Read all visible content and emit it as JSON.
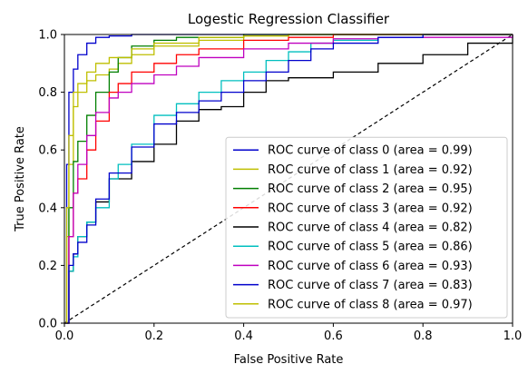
{
  "chart_data": {
    "type": "line",
    "title": "Logestic Regression Classifier",
    "xlabel": "False Positive Rate",
    "ylabel": "True Positive Rate",
    "xlim": [
      0.0,
      1.0
    ],
    "ylim": [
      0.0,
      1.0
    ],
    "xticks": [
      "0.0",
      "0.2",
      "0.4",
      "0.6",
      "0.8",
      "1.0"
    ],
    "yticks": [
      "0.0",
      "0.2",
      "0.4",
      "0.6",
      "0.8",
      "1.0"
    ],
    "grid": false,
    "legend_position": "lower right",
    "diagonal": {
      "x": [
        0,
        1
      ],
      "y": [
        0,
        1
      ],
      "style": "dashed",
      "color": "#000000"
    },
    "series": [
      {
        "name": "ROC curve of class 0 (area = 0.99)",
        "color": "#0000cc",
        "x": [
          0,
          0.005,
          0.01,
          0.02,
          0.03,
          0.05,
          0.07,
          0.1,
          0.15,
          0.2,
          0.3,
          0.5,
          1.0
        ],
        "y": [
          0,
          0.55,
          0.8,
          0.88,
          0.93,
          0.97,
          0.99,
          0.995,
          1.0,
          1.0,
          1.0,
          1.0,
          1.0
        ]
      },
      {
        "name": "ROC curve of class 1 (area = 0.92)",
        "color": "#bfbf00",
        "x": [
          0,
          0.005,
          0.01,
          0.02,
          0.03,
          0.05,
          0.07,
          0.1,
          0.12,
          0.15,
          0.2,
          0.3,
          0.4,
          0.5,
          0.6,
          1.0
        ],
        "y": [
          0,
          0.3,
          0.55,
          0.75,
          0.8,
          0.84,
          0.86,
          0.88,
          0.9,
          0.93,
          0.96,
          0.98,
          0.995,
          1.0,
          1.0,
          1.0
        ]
      },
      {
        "name": "ROC curve of class 2 (area = 0.95)",
        "color": "#007f00",
        "x": [
          0,
          0.01,
          0.02,
          0.03,
          0.05,
          0.07,
          0.1,
          0.12,
          0.15,
          0.2,
          0.25,
          0.3,
          0.4,
          0.5,
          0.6,
          1.0
        ],
        "y": [
          0,
          0.4,
          0.56,
          0.63,
          0.72,
          0.8,
          0.87,
          0.92,
          0.96,
          0.98,
          0.99,
          0.99,
          1.0,
          1.0,
          1.0,
          1.0
        ]
      },
      {
        "name": "ROC curve of class 3 (area = 0.92)",
        "color": "#ff0000",
        "x": [
          0,
          0.01,
          0.02,
          0.03,
          0.05,
          0.07,
          0.1,
          0.12,
          0.15,
          0.2,
          0.25,
          0.3,
          0.4,
          0.5,
          0.6,
          0.7,
          1.0
        ],
        "y": [
          0,
          0.3,
          0.45,
          0.5,
          0.6,
          0.7,
          0.8,
          0.83,
          0.87,
          0.9,
          0.93,
          0.95,
          0.98,
          0.99,
          1.0,
          1.0,
          1.0
        ]
      },
      {
        "name": "ROC curve of class 4 (area = 0.82)",
        "color": "#000000",
        "x": [
          0,
          0.01,
          0.02,
          0.03,
          0.05,
          0.07,
          0.1,
          0.15,
          0.2,
          0.25,
          0.3,
          0.35,
          0.4,
          0.45,
          0.5,
          0.6,
          0.7,
          0.8,
          0.9,
          1.0
        ],
        "y": [
          0,
          0.18,
          0.24,
          0.3,
          0.35,
          0.42,
          0.5,
          0.56,
          0.62,
          0.7,
          0.74,
          0.75,
          0.8,
          0.84,
          0.85,
          0.87,
          0.9,
          0.93,
          0.97,
          1.0
        ]
      },
      {
        "name": "ROC curve of class 5 (area = 0.86)",
        "color": "#00bfbf",
        "x": [
          0,
          0.01,
          0.02,
          0.03,
          0.05,
          0.07,
          0.1,
          0.12,
          0.15,
          0.2,
          0.25,
          0.3,
          0.35,
          0.4,
          0.45,
          0.5,
          0.55,
          0.6,
          0.7,
          0.8,
          1.0
        ],
        "y": [
          0,
          0.18,
          0.23,
          0.3,
          0.35,
          0.4,
          0.5,
          0.55,
          0.62,
          0.72,
          0.76,
          0.8,
          0.84,
          0.87,
          0.91,
          0.94,
          0.97,
          0.98,
          0.99,
          1.0,
          1.0
        ]
      },
      {
        "name": "ROC curve of class 6 (area = 0.93)",
        "color": "#bf00bf",
        "x": [
          0,
          0.01,
          0.02,
          0.03,
          0.05,
          0.07,
          0.1,
          0.12,
          0.15,
          0.2,
          0.25,
          0.3,
          0.4,
          0.5,
          0.6,
          0.7,
          1.0
        ],
        "y": [
          0,
          0.3,
          0.45,
          0.55,
          0.65,
          0.73,
          0.78,
          0.8,
          0.83,
          0.86,
          0.89,
          0.92,
          0.95,
          0.97,
          0.985,
          0.99,
          1.0
        ]
      },
      {
        "name": "ROC curve of class 7 (area = 0.83)",
        "color": "#0000cc",
        "x": [
          0,
          0.01,
          0.02,
          0.03,
          0.05,
          0.07,
          0.1,
          0.15,
          0.2,
          0.25,
          0.3,
          0.35,
          0.4,
          0.45,
          0.5,
          0.55,
          0.6,
          0.7,
          0.8,
          1.0
        ],
        "y": [
          0,
          0.2,
          0.24,
          0.28,
          0.34,
          0.43,
          0.52,
          0.61,
          0.69,
          0.73,
          0.77,
          0.8,
          0.84,
          0.87,
          0.91,
          0.95,
          0.97,
          0.99,
          1.0,
          1.0
        ]
      },
      {
        "name": "ROC curve of class 8 (area = 0.97)",
        "color": "#bfbf00",
        "x": [
          0,
          0.005,
          0.01,
          0.02,
          0.03,
          0.05,
          0.07,
          0.1,
          0.15,
          0.2,
          0.3,
          0.4,
          0.5,
          1.0
        ],
        "y": [
          0,
          0.4,
          0.65,
          0.8,
          0.83,
          0.87,
          0.9,
          0.92,
          0.95,
          0.97,
          0.99,
          0.995,
          1.0,
          1.0
        ]
      }
    ]
  }
}
